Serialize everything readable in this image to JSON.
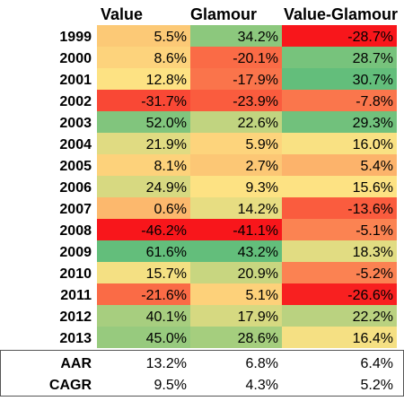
{
  "chart_data": {
    "type": "heatmap",
    "columns": [
      "Value",
      "Glamour",
      "Value-Glamour"
    ],
    "rows": [
      {
        "label": "1999",
        "values": [
          "5.5%",
          "34.2%",
          "-28.7%"
        ],
        "numbers": [
          5.5,
          34.2,
          -28.7
        ]
      },
      {
        "label": "2000",
        "values": [
          "8.6%",
          "-20.1%",
          "28.7%"
        ],
        "numbers": [
          8.6,
          -20.1,
          28.7
        ]
      },
      {
        "label": "2001",
        "values": [
          "12.8%",
          "-17.9%",
          "30.7%"
        ],
        "numbers": [
          12.8,
          -17.9,
          30.7
        ]
      },
      {
        "label": "2002",
        "values": [
          "-31.7%",
          "-23.9%",
          "-7.8%"
        ],
        "numbers": [
          -31.7,
          -23.9,
          -7.8
        ]
      },
      {
        "label": "2003",
        "values": [
          "52.0%",
          "22.6%",
          "29.3%"
        ],
        "numbers": [
          52.0,
          22.6,
          29.3
        ]
      },
      {
        "label": "2004",
        "values": [
          "21.9%",
          "5.9%",
          "16.0%"
        ],
        "numbers": [
          21.9,
          5.9,
          16.0
        ]
      },
      {
        "label": "2005",
        "values": [
          "8.1%",
          "2.7%",
          "5.4%"
        ],
        "numbers": [
          8.1,
          2.7,
          5.4
        ]
      },
      {
        "label": "2006",
        "values": [
          "24.9%",
          "9.3%",
          "15.6%"
        ],
        "numbers": [
          24.9,
          9.3,
          15.6
        ]
      },
      {
        "label": "2007",
        "values": [
          "0.6%",
          "14.2%",
          "-13.6%"
        ],
        "numbers": [
          0.6,
          14.2,
          -13.6
        ]
      },
      {
        "label": "2008",
        "values": [
          "-46.2%",
          "-41.1%",
          "-5.1%"
        ],
        "numbers": [
          -46.2,
          -41.1,
          -5.1
        ]
      },
      {
        "label": "2009",
        "values": [
          "61.6%",
          "43.2%",
          "18.3%"
        ],
        "numbers": [
          61.6,
          43.2,
          18.3
        ]
      },
      {
        "label": "2010",
        "values": [
          "15.7%",
          "20.9%",
          "-5.2%"
        ],
        "numbers": [
          15.7,
          20.9,
          -5.2
        ]
      },
      {
        "label": "2011",
        "values": [
          "-21.6%",
          "5.1%",
          "-26.6%"
        ],
        "numbers": [
          -21.6,
          5.1,
          -26.6
        ]
      },
      {
        "label": "2012",
        "values": [
          "40.1%",
          "17.9%",
          "22.2%"
        ],
        "numbers": [
          40.1,
          17.9,
          22.2
        ]
      },
      {
        "label": "2013",
        "values": [
          "45.0%",
          "28.6%",
          "16.4%"
        ],
        "numbers": [
          45.0,
          28.6,
          16.4
        ]
      }
    ],
    "summary_rows": [
      {
        "label": "AAR",
        "values": [
          "13.2%",
          "6.8%",
          "6.4%"
        ],
        "numbers": [
          13.2,
          6.8,
          6.4
        ]
      },
      {
        "label": "CAGR",
        "values": [
          "9.5%",
          "4.3%",
          "5.2%"
        ],
        "numbers": [
          9.5,
          4.3,
          5.2
        ]
      }
    ],
    "color_scale": {
      "low": "#f8161b",
      "mid": "#fde283",
      "high": "#63be7b"
    }
  }
}
